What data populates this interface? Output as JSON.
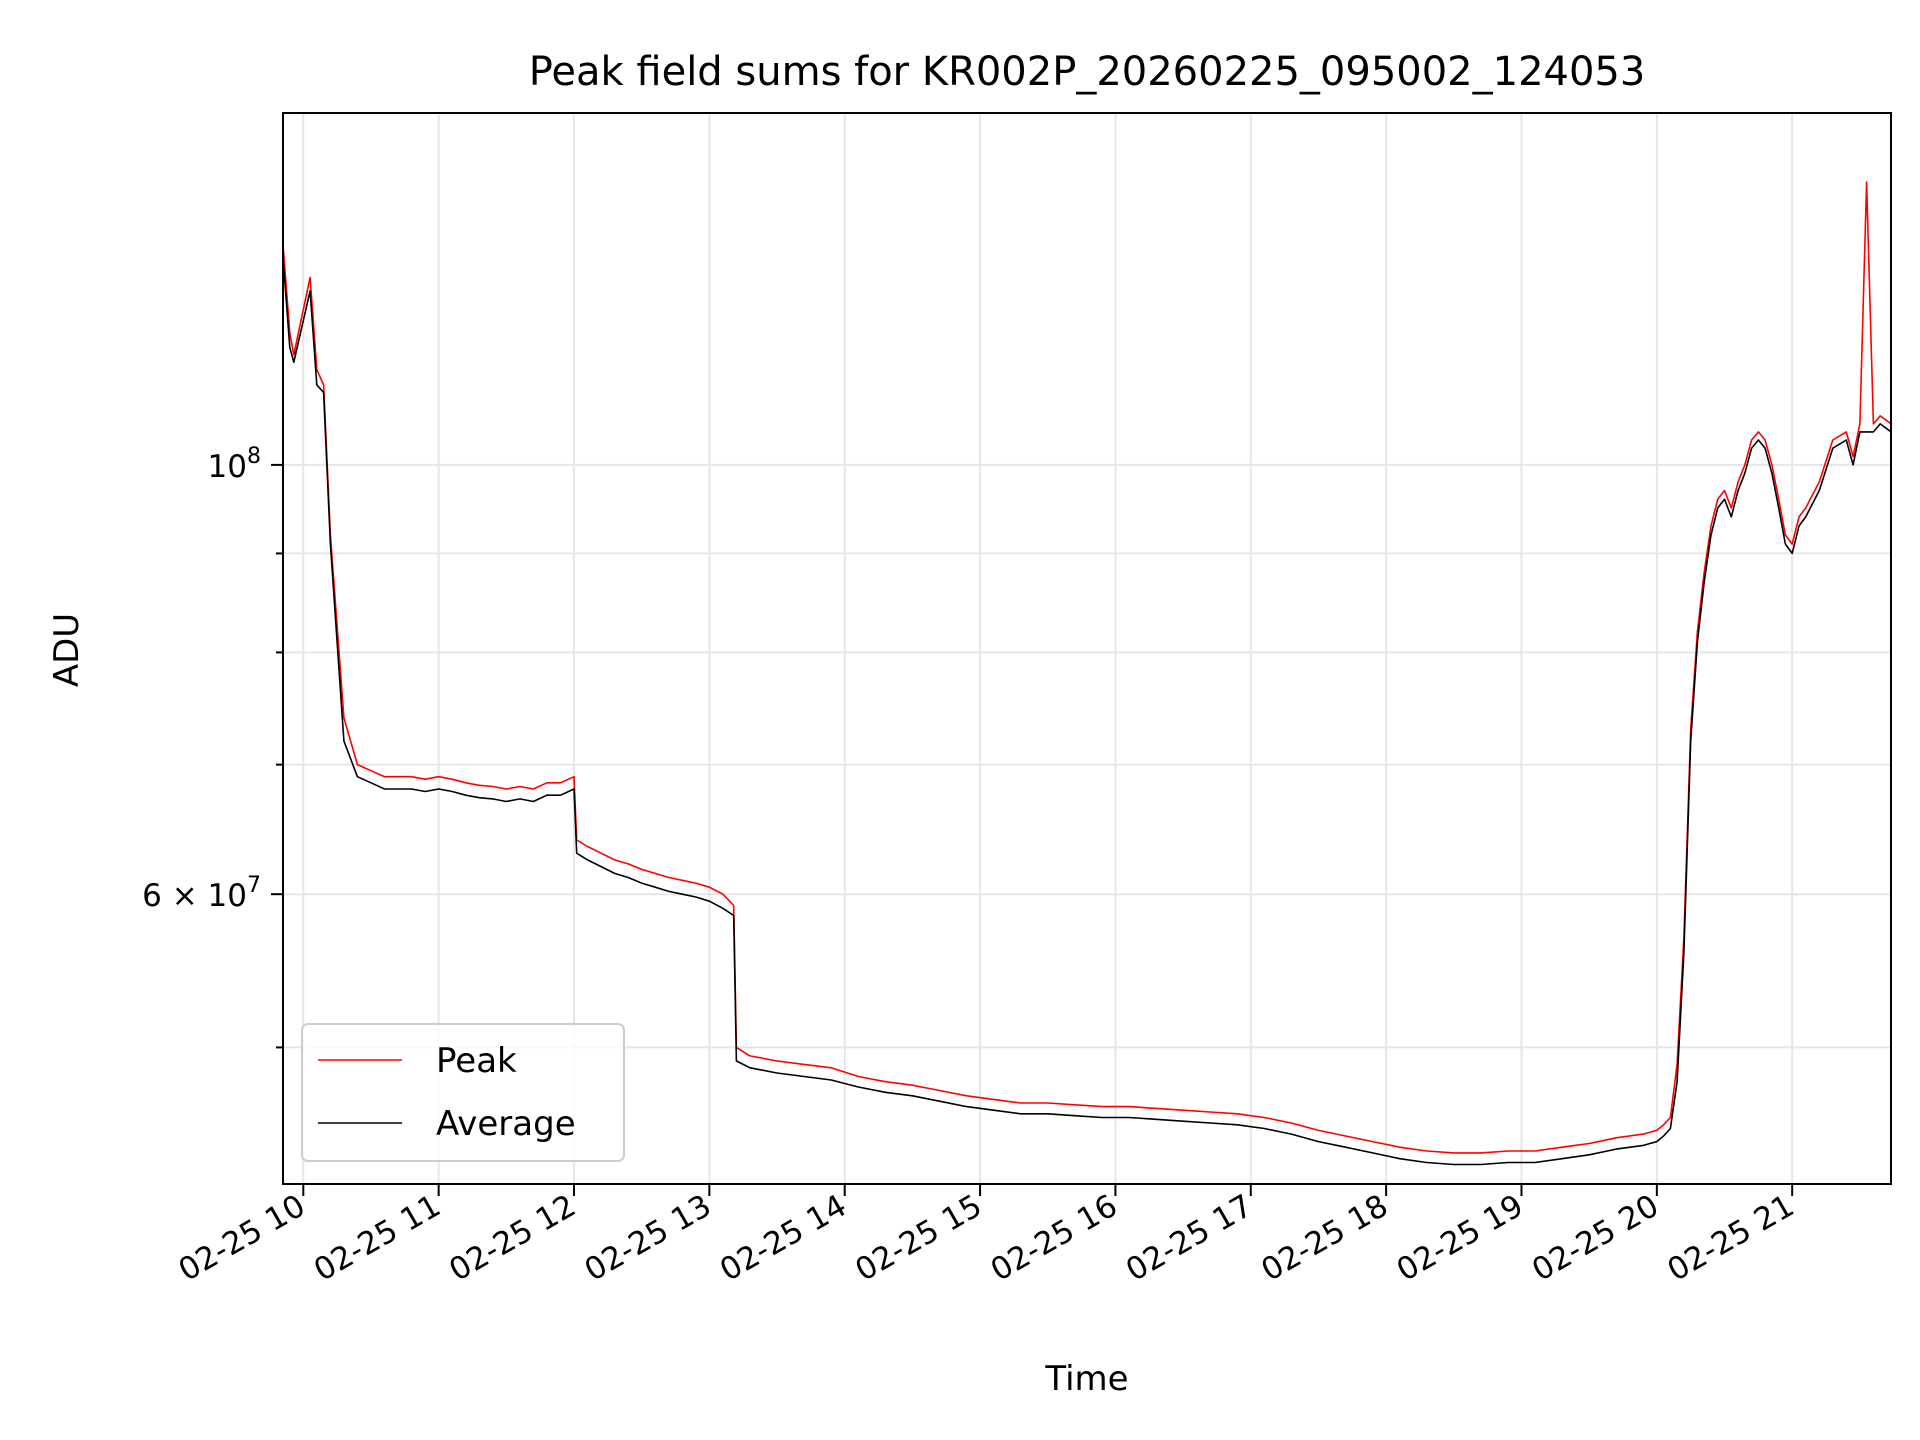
{
  "chart_data": {
    "type": "line",
    "title": "Peak field sums for KR002P_20260225_095002_124053",
    "xlabel": "Time",
    "ylabel": "ADU",
    "x_unit": "hours (02-25)",
    "xlim": [
      9.85,
      21.73
    ],
    "ylim": [
      42500000,
      152000000
    ],
    "yscale": "log",
    "grid": true,
    "legend_position": "lower-left",
    "x_ticks": [
      {
        "value": 10,
        "label": "02-25 10"
      },
      {
        "value": 11,
        "label": "02-25 11"
      },
      {
        "value": 12,
        "label": "02-25 12"
      },
      {
        "value": 13,
        "label": "02-25 13"
      },
      {
        "value": 14,
        "label": "02-25 14"
      },
      {
        "value": 15,
        "label": "02-25 15"
      },
      {
        "value": 16,
        "label": "02-25 16"
      },
      {
        "value": 17,
        "label": "02-25 17"
      },
      {
        "value": 18,
        "label": "02-25 18"
      },
      {
        "value": 19,
        "label": "02-25 19"
      },
      {
        "value": 20,
        "label": "02-25 20"
      },
      {
        "value": 21,
        "label": "02-25 21"
      }
    ],
    "y_major_ticks": [
      {
        "value": 100000000,
        "label_base": "10",
        "label_exp": "8"
      },
      {
        "value": 60000000,
        "label_base": "6 × 10",
        "label_exp": "7"
      }
    ],
    "y_minor_ticks": [
      50000000,
      70000000,
      80000000,
      90000000
    ],
    "series": [
      {
        "name": "Peak",
        "color": "#ff0000",
        "x": [
          9.85,
          9.9,
          9.93,
          10.05,
          10.1,
          10.15,
          10.2,
          10.3,
          10.4,
          10.5,
          10.6,
          10.7,
          10.8,
          10.9,
          11.0,
          11.1,
          11.2,
          11.3,
          11.4,
          11.5,
          11.6,
          11.7,
          11.8,
          11.9,
          12.0,
          12.02,
          12.1,
          12.2,
          12.3,
          12.4,
          12.5,
          12.6,
          12.7,
          12.8,
          12.9,
          13.0,
          13.1,
          13.18,
          13.2,
          13.3,
          13.5,
          13.7,
          13.9,
          14.1,
          14.3,
          14.5,
          14.7,
          14.9,
          15.1,
          15.3,
          15.5,
          15.7,
          15.9,
          16.1,
          16.3,
          16.5,
          16.7,
          16.9,
          17.1,
          17.3,
          17.5,
          17.7,
          17.9,
          18.1,
          18.3,
          18.5,
          18.7,
          18.9,
          19.1,
          19.3,
          19.5,
          19.7,
          19.9,
          20.0,
          20.05,
          20.1,
          20.15,
          20.2,
          20.25,
          20.3,
          20.35,
          20.4,
          20.45,
          20.5,
          20.55,
          20.6,
          20.65,
          20.7,
          20.75,
          20.8,
          20.85,
          20.9,
          20.95,
          21.0,
          21.05,
          21.1,
          21.2,
          21.3,
          21.4,
          21.45,
          21.5,
          21.55,
          21.6,
          21.65,
          21.73
        ],
        "y": [
          130000000,
          117000000,
          114000000,
          125000000,
          112000000,
          110000000,
          92000000,
          74000000,
          70000000,
          69500000,
          69000000,
          69000000,
          69000000,
          68800000,
          69000000,
          68800000,
          68500000,
          68300000,
          68200000,
          68000000,
          68200000,
          68000000,
          68500000,
          68500000,
          69000000,
          64000000,
          63500000,
          63000000,
          62500000,
          62200000,
          61800000,
          61500000,
          61200000,
          61000000,
          60800000,
          60500000,
          60000000,
          59200000,
          50000000,
          49500000,
          49200000,
          49000000,
          48800000,
          48300000,
          48000000,
          47800000,
          47500000,
          47200000,
          47000000,
          46800000,
          46800000,
          46700000,
          46600000,
          46600000,
          46500000,
          46400000,
          46300000,
          46200000,
          46000000,
          45700000,
          45300000,
          45000000,
          44700000,
          44400000,
          44200000,
          44100000,
          44100000,
          44200000,
          44200000,
          44400000,
          44600000,
          44900000,
          45100000,
          45300000,
          45600000,
          46000000,
          49000000,
          57000000,
          73000000,
          82000000,
          88000000,
          93000000,
          96000000,
          97000000,
          95000000,
          98000000,
          100000000,
          103000000,
          104000000,
          103000000,
          100000000,
          96000000,
          92000000,
          91000000,
          94000000,
          95000000,
          98000000,
          103000000,
          104000000,
          101000000,
          105000000,
          140000000,
          105000000,
          106000000,
          105000000
        ]
      },
      {
        "name": "Average",
        "color": "#000000",
        "x": [
          9.85,
          9.9,
          9.93,
          10.05,
          10.1,
          10.15,
          10.2,
          10.3,
          10.4,
          10.5,
          10.6,
          10.7,
          10.8,
          10.9,
          11.0,
          11.1,
          11.2,
          11.3,
          11.4,
          11.5,
          11.6,
          11.7,
          11.8,
          11.9,
          12.0,
          12.02,
          12.1,
          12.2,
          12.3,
          12.4,
          12.5,
          12.6,
          12.7,
          12.8,
          12.9,
          13.0,
          13.1,
          13.18,
          13.2,
          13.3,
          13.5,
          13.7,
          13.9,
          14.1,
          14.3,
          14.5,
          14.7,
          14.9,
          15.1,
          15.3,
          15.5,
          15.7,
          15.9,
          16.1,
          16.3,
          16.5,
          16.7,
          16.9,
          17.1,
          17.3,
          17.5,
          17.7,
          17.9,
          18.1,
          18.3,
          18.5,
          18.7,
          18.9,
          19.1,
          19.3,
          19.5,
          19.7,
          19.9,
          20.0,
          20.05,
          20.1,
          20.15,
          20.2,
          20.25,
          20.3,
          20.35,
          20.4,
          20.45,
          20.5,
          20.55,
          20.6,
          20.65,
          20.7,
          20.75,
          20.8,
          20.85,
          20.9,
          20.95,
          21.0,
          21.05,
          21.1,
          21.2,
          21.3,
          21.4,
          21.45,
          21.5,
          21.55,
          21.6,
          21.65,
          21.73
        ],
        "y": [
          128000000,
          115000000,
          113000000,
          123000000,
          110000000,
          109000000,
          91000000,
          72000000,
          69000000,
          68500000,
          68000000,
          68000000,
          68000000,
          67800000,
          68000000,
          67800000,
          67500000,
          67300000,
          67200000,
          67000000,
          67200000,
          67000000,
          67500000,
          67500000,
          68000000,
          63000000,
          62500000,
          62000000,
          61500000,
          61200000,
          60800000,
          60500000,
          60200000,
          60000000,
          59800000,
          59500000,
          59000000,
          58500000,
          49200000,
          48800000,
          48500000,
          48300000,
          48100000,
          47700000,
          47400000,
          47200000,
          46900000,
          46600000,
          46400000,
          46200000,
          46200000,
          46100000,
          46000000,
          46000000,
          45900000,
          45800000,
          45700000,
          45600000,
          45400000,
          45100000,
          44700000,
          44400000,
          44100000,
          43800000,
          43600000,
          43500000,
          43500000,
          43600000,
          43600000,
          43800000,
          44000000,
          44300000,
          44500000,
          44700000,
          45000000,
          45400000,
          48000000,
          56000000,
          72000000,
          81000000,
          87000000,
          92000000,
          95000000,
          96000000,
          94000000,
          97000000,
          99000000,
          102000000,
          103000000,
          102000000,
          99000000,
          95000000,
          91000000,
          90000000,
          93000000,
          94000000,
          97000000,
          102000000,
          103000000,
          100000000,
          104000000,
          104000000,
          104000000,
          105000000,
          104000000
        ]
      }
    ]
  }
}
